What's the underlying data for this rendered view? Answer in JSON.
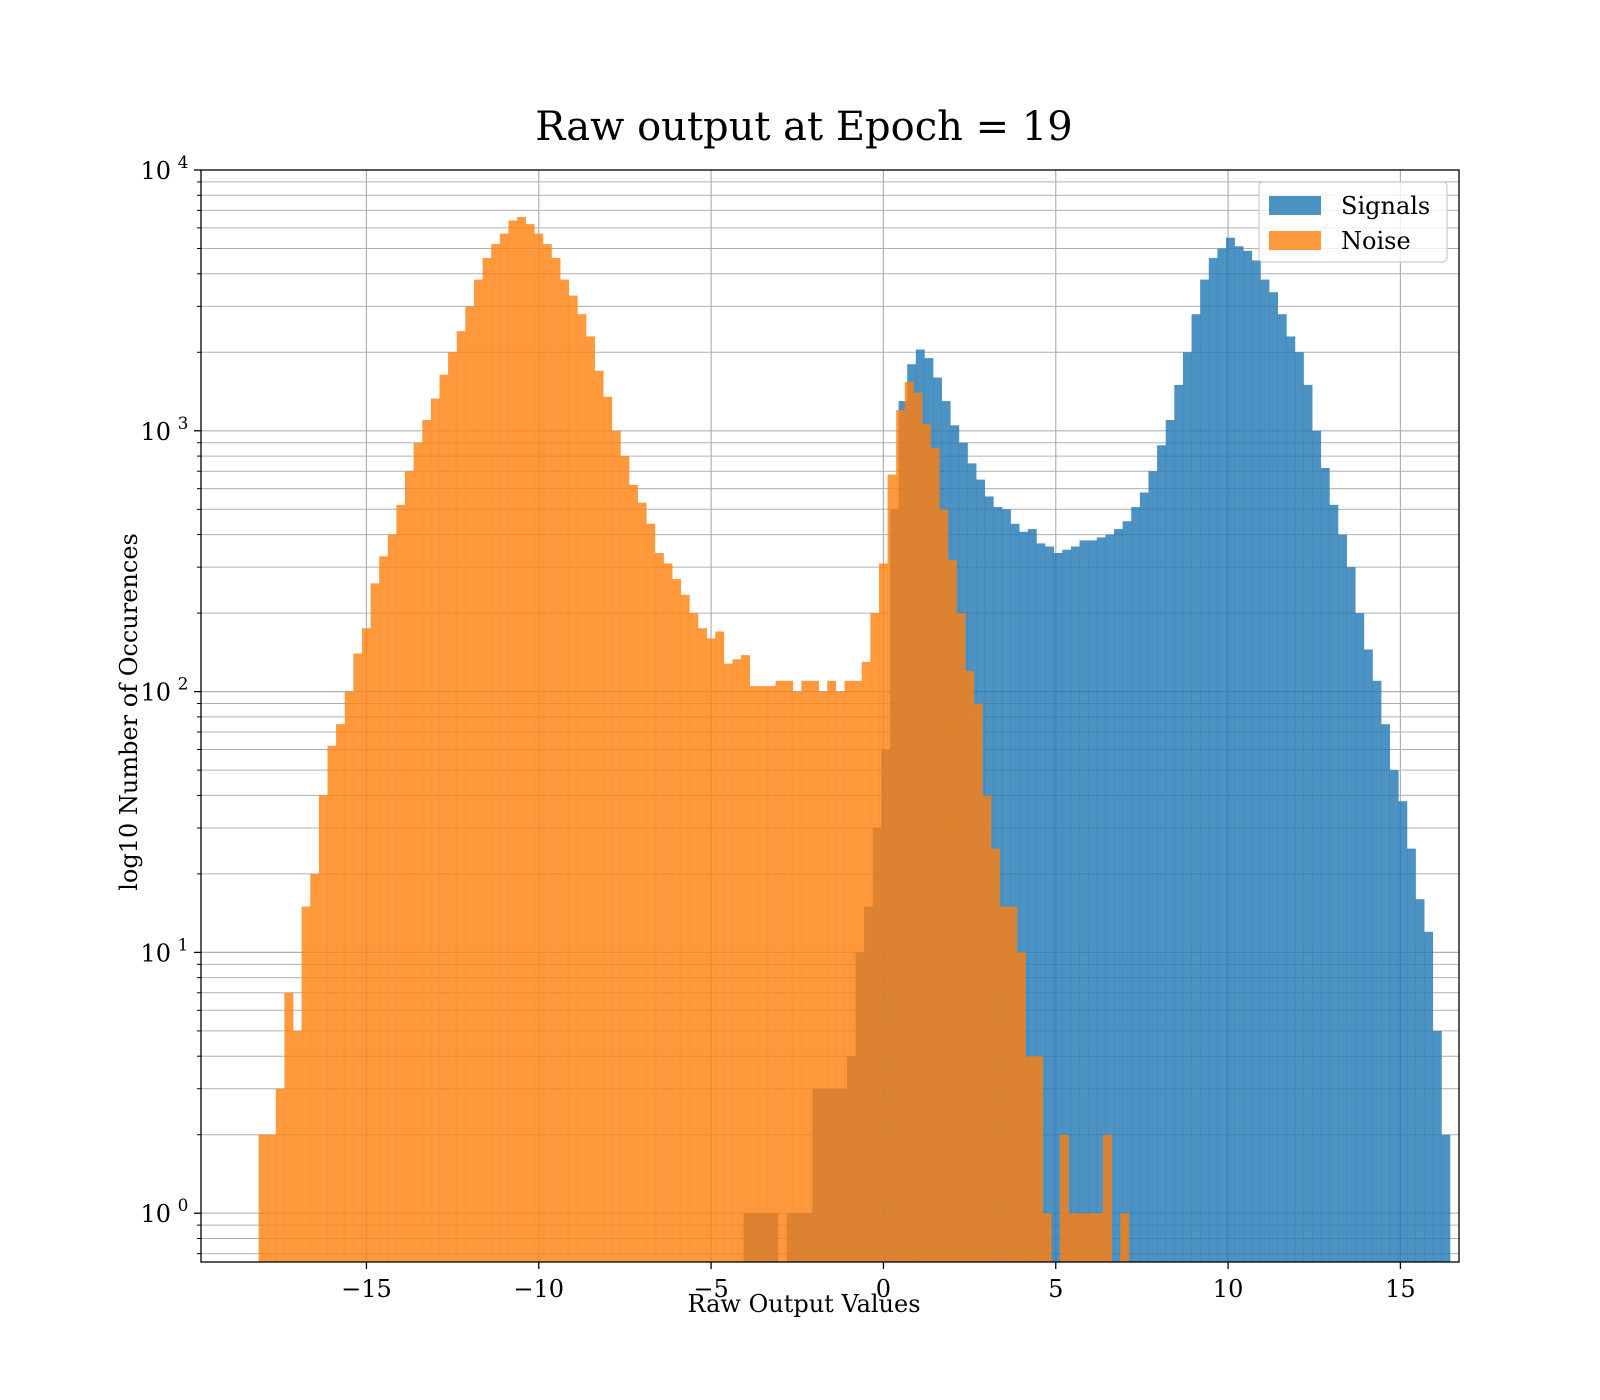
{
  "chart_data": {
    "type": "bar",
    "title": "Raw output at Epoch = 19",
    "xlabel": "Raw Output Values",
    "ylabel": "log10 Number of Occurences",
    "xlim": [
      -19.8,
      16.7
    ],
    "ylim": [
      0.65,
      10000
    ],
    "yscale": "log",
    "grid": true,
    "legend_position": "top-right",
    "x_ticks": [
      {
        "value": -15,
        "label": "−15"
      },
      {
        "value": -10,
        "label": "−10"
      },
      {
        "value": -5,
        "label": "−5"
      },
      {
        "value": 0,
        "label": "0"
      },
      {
        "value": 5,
        "label": "5"
      },
      {
        "value": 10,
        "label": "10"
      },
      {
        "value": 15,
        "label": "15"
      }
    ],
    "y_ticks": [
      {
        "value": 1,
        "base": "10",
        "exp": "0"
      },
      {
        "value": 10,
        "base": "10",
        "exp": "1"
      },
      {
        "value": 100,
        "base": "10",
        "exp": "2"
      },
      {
        "value": 1000,
        "base": "10",
        "exp": "3"
      },
      {
        "value": 10000,
        "base": "10",
        "exp": "4"
      }
    ],
    "series": [
      {
        "name": "Signals",
        "color": "#1f77b4",
        "opacity": 0.8,
        "bins": [
          [
            -4.06,
            -3.81,
            1
          ],
          [
            -3.81,
            -3.56,
            1
          ],
          [
            -3.56,
            -3.31,
            1
          ],
          [
            -3.31,
            -3.06,
            1
          ],
          [
            -2.81,
            -2.56,
            1
          ],
          [
            -2.56,
            -2.31,
            1
          ],
          [
            -2.31,
            -2.06,
            1
          ],
          [
            -2.06,
            -1.81,
            3
          ],
          [
            -1.81,
            -1.56,
            3
          ],
          [
            -1.56,
            -1.31,
            3
          ],
          [
            -1.31,
            -1.06,
            3
          ],
          [
            -1.06,
            -0.81,
            4
          ],
          [
            -0.81,
            -0.56,
            10
          ],
          [
            -0.56,
            -0.31,
            15
          ],
          [
            -0.31,
            -0.06,
            30
          ],
          [
            -0.06,
            0.19,
            60
          ],
          [
            0.19,
            0.44,
            500
          ],
          [
            0.44,
            0.69,
            1300
          ],
          [
            0.69,
            0.94,
            1800
          ],
          [
            0.94,
            1.19,
            2050
          ],
          [
            1.19,
            1.44,
            1900
          ],
          [
            1.44,
            1.69,
            1600
          ],
          [
            1.69,
            1.94,
            1300
          ],
          [
            1.94,
            2.19,
            1050
          ],
          [
            2.19,
            2.44,
            900
          ],
          [
            2.44,
            2.69,
            750
          ],
          [
            2.69,
            2.94,
            650
          ],
          [
            2.94,
            3.19,
            560
          ],
          [
            3.19,
            3.44,
            510
          ],
          [
            3.44,
            3.69,
            500
          ],
          [
            3.69,
            3.94,
            440
          ],
          [
            3.94,
            4.19,
            410
          ],
          [
            4.19,
            4.44,
            420
          ],
          [
            4.44,
            4.69,
            370
          ],
          [
            4.69,
            4.94,
            360
          ],
          [
            4.94,
            5.19,
            340
          ],
          [
            5.19,
            5.44,
            350
          ],
          [
            5.44,
            5.69,
            360
          ],
          [
            5.69,
            5.94,
            380
          ],
          [
            5.94,
            6.19,
            380
          ],
          [
            6.19,
            6.44,
            390
          ],
          [
            6.44,
            6.69,
            400
          ],
          [
            6.69,
            6.94,
            420
          ],
          [
            6.94,
            7.19,
            450
          ],
          [
            7.19,
            7.44,
            510
          ],
          [
            7.44,
            7.69,
            580
          ],
          [
            7.69,
            7.94,
            700
          ],
          [
            7.94,
            8.19,
            880
          ],
          [
            8.19,
            8.44,
            1100
          ],
          [
            8.44,
            8.69,
            1500
          ],
          [
            8.69,
            8.94,
            2000
          ],
          [
            8.94,
            9.19,
            2800
          ],
          [
            9.19,
            9.44,
            3800
          ],
          [
            9.44,
            9.69,
            4600
          ],
          [
            9.69,
            9.94,
            5000
          ],
          [
            9.94,
            10.19,
            5500
          ],
          [
            10.19,
            10.44,
            5100
          ],
          [
            10.44,
            10.69,
            4900
          ],
          [
            10.69,
            10.94,
            4500
          ],
          [
            10.94,
            11.19,
            3800
          ],
          [
            11.19,
            11.44,
            3400
          ],
          [
            11.44,
            11.69,
            2800
          ],
          [
            11.69,
            11.94,
            2300
          ],
          [
            11.94,
            12.19,
            2000
          ],
          [
            12.19,
            12.44,
            1500
          ],
          [
            12.44,
            12.69,
            1000
          ],
          [
            12.69,
            12.94,
            720
          ],
          [
            12.94,
            13.19,
            520
          ],
          [
            13.19,
            13.44,
            400
          ],
          [
            13.44,
            13.69,
            300
          ],
          [
            13.69,
            13.94,
            200
          ],
          [
            13.94,
            14.19,
            145
          ],
          [
            14.19,
            14.44,
            110
          ],
          [
            14.44,
            14.69,
            75
          ],
          [
            14.69,
            14.94,
            50
          ],
          [
            14.94,
            15.19,
            38
          ],
          [
            15.19,
            15.44,
            25
          ],
          [
            15.44,
            15.69,
            16
          ],
          [
            15.69,
            15.94,
            12
          ],
          [
            15.94,
            16.19,
            5
          ],
          [
            16.19,
            16.44,
            2
          ]
        ]
      },
      {
        "name": "Noise",
        "color": "#ff7f0e",
        "opacity": 0.8,
        "bins": [
          [
            -18.13,
            -17.88,
            2
          ],
          [
            -17.88,
            -17.63,
            2
          ],
          [
            -17.63,
            -17.38,
            3
          ],
          [
            -17.38,
            -17.13,
            7
          ],
          [
            -17.13,
            -16.88,
            5
          ],
          [
            -16.88,
            -16.63,
            15
          ],
          [
            -16.63,
            -16.38,
            20
          ],
          [
            -16.38,
            -16.13,
            40
          ],
          [
            -16.13,
            -15.88,
            62
          ],
          [
            -15.88,
            -15.63,
            75
          ],
          [
            -15.63,
            -15.38,
            100
          ],
          [
            -15.38,
            -15.13,
            140
          ],
          [
            -15.13,
            -14.88,
            175
          ],
          [
            -14.88,
            -14.63,
            260
          ],
          [
            -14.63,
            -14.38,
            330
          ],
          [
            -14.38,
            -14.13,
            400
          ],
          [
            -14.13,
            -13.88,
            520
          ],
          [
            -13.88,
            -13.63,
            700
          ],
          [
            -13.63,
            -13.38,
            900
          ],
          [
            -13.38,
            -13.13,
            1100
          ],
          [
            -13.13,
            -12.88,
            1330
          ],
          [
            -12.88,
            -12.63,
            1640
          ],
          [
            -12.63,
            -12.38,
            2000
          ],
          [
            -12.38,
            -12.13,
            2410
          ],
          [
            -12.13,
            -11.88,
            3000
          ],
          [
            -11.88,
            -11.63,
            3800
          ],
          [
            -11.63,
            -11.38,
            4600
          ],
          [
            -11.38,
            -11.13,
            5200
          ],
          [
            -11.13,
            -10.88,
            5700
          ],
          [
            -10.88,
            -10.63,
            6400
          ],
          [
            -10.63,
            -10.38,
            6600
          ],
          [
            -10.38,
            -10.13,
            6200
          ],
          [
            -10.13,
            -9.88,
            5700
          ],
          [
            -9.88,
            -9.63,
            5200
          ],
          [
            -9.63,
            -9.38,
            4600
          ],
          [
            -9.38,
            -9.13,
            3800
          ],
          [
            -9.13,
            -8.88,
            3300
          ],
          [
            -8.88,
            -8.63,
            2800
          ],
          [
            -8.63,
            -8.38,
            2300
          ],
          [
            -8.38,
            -8.13,
            1700
          ],
          [
            -8.13,
            -7.88,
            1350
          ],
          [
            -7.88,
            -7.63,
            1000
          ],
          [
            -7.63,
            -7.38,
            800
          ],
          [
            -7.38,
            -7.13,
            620
          ],
          [
            -7.13,
            -6.88,
            530
          ],
          [
            -6.88,
            -6.63,
            440
          ],
          [
            -6.63,
            -6.38,
            340
          ],
          [
            -6.38,
            -6.13,
            310
          ],
          [
            -6.13,
            -5.88,
            270
          ],
          [
            -5.88,
            -5.63,
            235
          ],
          [
            -5.63,
            -5.38,
            200
          ],
          [
            -5.38,
            -5.13,
            175
          ],
          [
            -5.13,
            -4.88,
            160
          ],
          [
            -4.88,
            -4.63,
            170
          ],
          [
            -4.63,
            -4.38,
            128
          ],
          [
            -4.38,
            -4.13,
            133
          ],
          [
            -4.13,
            -3.88,
            138
          ],
          [
            -3.88,
            -3.63,
            105
          ],
          [
            -3.63,
            -3.38,
            105
          ],
          [
            -3.38,
            -3.13,
            105
          ],
          [
            -3.13,
            -2.88,
            110
          ],
          [
            -2.88,
            -2.63,
            110
          ],
          [
            -2.63,
            -2.38,
            100
          ],
          [
            -2.38,
            -2.13,
            110
          ],
          [
            -2.13,
            -1.88,
            110
          ],
          [
            -1.88,
            -1.63,
            100
          ],
          [
            -1.63,
            -1.38,
            110
          ],
          [
            -1.38,
            -1.13,
            100
          ],
          [
            -1.13,
            -0.88,
            110
          ],
          [
            -0.88,
            -0.63,
            110
          ],
          [
            -0.63,
            -0.38,
            130
          ],
          [
            -0.38,
            -0.13,
            200
          ],
          [
            -0.13,
            0.12,
            310
          ],
          [
            0.12,
            0.37,
            680
          ],
          [
            0.37,
            0.62,
            1200
          ],
          [
            0.62,
            0.87,
            1540
          ],
          [
            0.87,
            1.12,
            1400
          ],
          [
            1.12,
            1.37,
            1060
          ],
          [
            1.37,
            1.62,
            860
          ],
          [
            1.62,
            1.87,
            500
          ],
          [
            1.87,
            2.12,
            320
          ],
          [
            2.12,
            2.37,
            200
          ],
          [
            2.37,
            2.62,
            120
          ],
          [
            2.62,
            2.87,
            90
          ],
          [
            2.87,
            3.12,
            40
          ],
          [
            3.12,
            3.37,
            25
          ],
          [
            3.37,
            3.62,
            15
          ],
          [
            3.62,
            3.87,
            15
          ],
          [
            3.87,
            4.12,
            10
          ],
          [
            4.12,
            4.37,
            4
          ],
          [
            4.37,
            4.62,
            4
          ],
          [
            4.62,
            4.87,
            1
          ],
          [
            5.12,
            5.37,
            2
          ],
          [
            5.37,
            5.62,
            1
          ],
          [
            5.62,
            5.87,
            1
          ],
          [
            5.87,
            6.12,
            1
          ],
          [
            6.12,
            6.37,
            1
          ],
          [
            6.37,
            6.62,
            2
          ],
          [
            6.87,
            7.12,
            1
          ]
        ]
      }
    ]
  }
}
